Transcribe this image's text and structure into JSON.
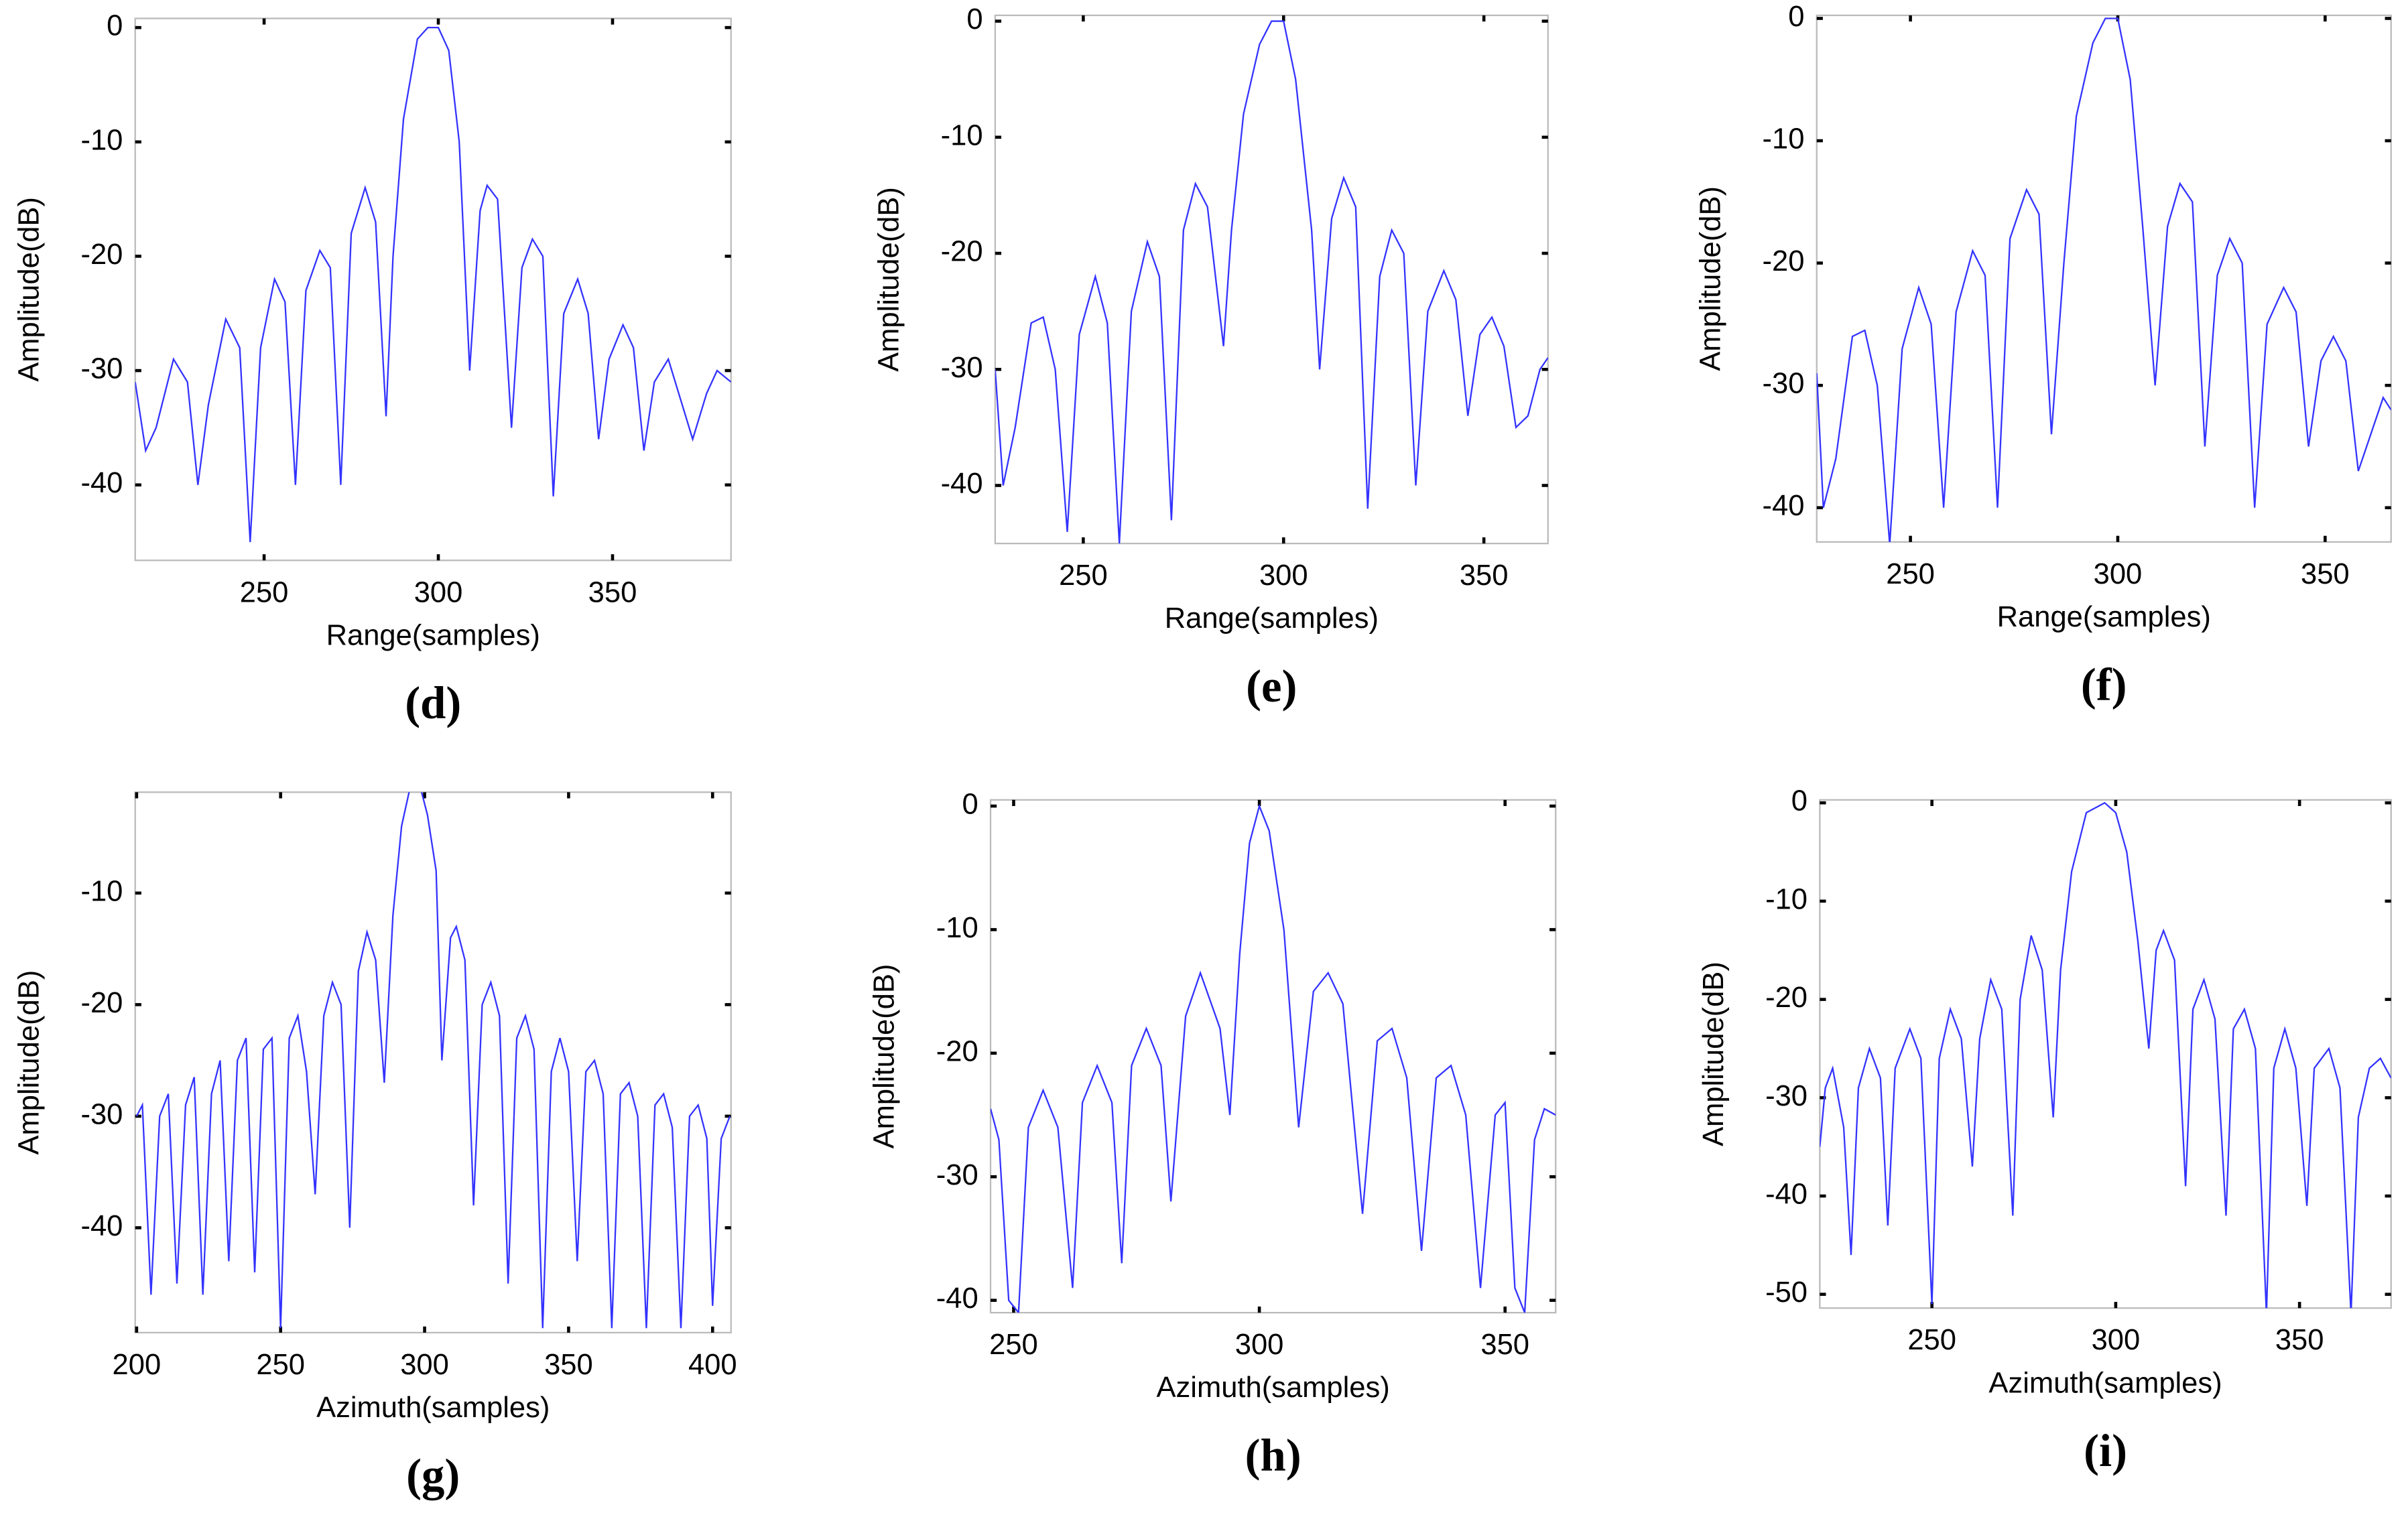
{
  "chart_data": [
    {
      "type": "line",
      "ylabel": "Amplitude(dB)",
      "xlabel": "Range(samples)",
      "caption": "(d)",
      "xlim": [
        213,
        384
      ],
      "ylim": [
        -46.6,
        0.8
      ],
      "xticks": [
        250,
        300,
        350
      ],
      "yticks": [
        -40,
        -30,
        -20,
        -10,
        0
      ],
      "x": [
        213,
        216,
        219,
        224,
        228,
        231,
        234,
        239,
        243,
        246,
        249,
        253,
        256,
        259,
        262,
        266,
        269,
        272,
        275,
        279,
        282,
        285,
        287,
        290,
        294,
        297,
        300,
        303,
        306,
        309,
        312,
        314,
        317,
        321,
        324,
        327,
        330,
        333,
        336,
        340,
        343,
        346,
        349,
        353,
        356,
        359,
        362,
        366,
        369,
        373,
        377,
        380,
        384
      ],
      "series": [
        {
          "color": "#3333ff",
          "values": [
            -31,
            -37,
            -35,
            -29,
            -31,
            -40,
            -33,
            -25.5,
            -28,
            -45,
            -28,
            -22,
            -24,
            -40,
            -23,
            -19.5,
            -21,
            -40,
            -18,
            -14,
            -17,
            -34,
            -20,
            -8,
            -1,
            0,
            0,
            -2,
            -10,
            -30,
            -16,
            -13.8,
            -15,
            -35,
            -21,
            -18.5,
            -20,
            -41,
            -25,
            -22,
            -25,
            -36,
            -29,
            -26,
            -28,
            -37,
            -31,
            -29,
            -32,
            -36,
            -32,
            -30,
            -31
          ]
        }
      ]
    },
    {
      "type": "line",
      "ylabel": "Amplitude(dB)",
      "xlabel": "Range(samples)",
      "caption": "(e)",
      "xlim": [
        228,
        366
      ],
      "ylim": [
        -45,
        0.5
      ],
      "xticks": [
        250,
        300,
        350
      ],
      "yticks": [
        -40,
        -30,
        -20,
        -10,
        0
      ],
      "x": [
        228,
        230,
        233,
        237,
        240,
        243,
        246,
        249,
        253,
        256,
        259,
        262,
        266,
        269,
        272,
        275,
        278,
        281,
        285,
        287,
        290,
        294,
        297,
        300,
        303,
        307,
        309,
        312,
        315,
        318,
        321,
        324,
        327,
        330,
        333,
        336,
        340,
        343,
        346,
        349,
        352,
        355,
        358,
        361,
        364,
        366
      ],
      "series": [
        {
          "color": "#3333ff",
          "values": [
            -30,
            -40,
            -35,
            -26,
            -25.5,
            -30,
            -44,
            -27,
            -22,
            -26,
            -45,
            -25,
            -19,
            -22,
            -43,
            -18,
            -14,
            -16,
            -28,
            -18,
            -8,
            -2,
            0,
            0,
            -5,
            -18,
            -30,
            -17,
            -13.5,
            -16,
            -42,
            -22,
            -18,
            -20,
            -40,
            -25,
            -21.5,
            -24,
            -34,
            -27,
            -25.5,
            -28,
            -35,
            -34,
            -30,
            -29
          ]
        }
      ]
    },
    {
      "type": "line",
      "ylabel": "Amplitude(dB)",
      "xlabel": "Range(samples)",
      "caption": "(f)",
      "xlim": [
        227.4,
        365.9
      ],
      "ylim": [
        -42.8,
        0.25
      ],
      "xticks": [
        250,
        300,
        350
      ],
      "yticks": [
        -40,
        -30,
        -20,
        -10,
        0
      ],
      "x": [
        227.4,
        229,
        232,
        236,
        239,
        242,
        245,
        248,
        252,
        255,
        258,
        261,
        265,
        268,
        271,
        274,
        278,
        281,
        284,
        287,
        290,
        294,
        297,
        300,
        303,
        306,
        309,
        312,
        315,
        318,
        321,
        324,
        327,
        330,
        333,
        336,
        340,
        343,
        346,
        349,
        352,
        355,
        358,
        361,
        364,
        365.9
      ],
      "series": [
        {
          "color": "#3333ff",
          "values": [
            -29,
            -40,
            -36,
            -26,
            -25.5,
            -30,
            -43,
            -27,
            -22,
            -25,
            -40,
            -24,
            -19,
            -21,
            -40,
            -18,
            -14,
            -16,
            -34,
            -20,
            -8,
            -2,
            0,
            0,
            -5,
            -17,
            -30,
            -17,
            -13.5,
            -15,
            -35,
            -21,
            -18,
            -20,
            -40,
            -25,
            -22,
            -24,
            -35,
            -28,
            -26,
            -28,
            -37,
            -34,
            -31,
            -32
          ]
        }
      ]
    },
    {
      "type": "line",
      "ylabel": "Amplitude(dB)",
      "xlabel": "Azimuth(samples)",
      "caption": "(g)",
      "xlim": [
        199.5,
        406.4
      ],
      "ylim": [
        -49.4,
        -0.96
      ],
      "xticks": [
        200,
        250,
        300,
        350,
        400
      ],
      "yticks": [
        -40,
        -30,
        -20,
        -10
      ],
      "x": [
        200,
        202,
        205,
        208,
        211,
        214,
        217,
        220,
        223,
        226,
        229,
        232,
        235,
        238,
        241,
        244,
        247,
        250,
        253,
        256,
        259,
        262,
        265,
        268,
        271,
        274,
        277,
        280,
        283,
        286,
        289,
        292,
        295,
        298,
        301,
        304,
        306,
        309,
        311,
        314,
        317,
        320,
        323,
        326,
        329,
        332,
        335,
        338,
        341,
        344,
        347,
        350,
        353,
        356,
        359,
        362,
        365,
        368,
        371,
        374,
        377,
        380,
        383,
        386,
        389,
        392,
        395,
        398,
        400,
        403,
        406
      ],
      "series": [
        {
          "color": "#3333ff",
          "values": [
            -30,
            -29,
            -46,
            -30,
            -28,
            -45,
            -29,
            -26.5,
            -46,
            -28,
            -25,
            -43,
            -25,
            -23,
            -44,
            -24,
            -23,
            -49,
            -23,
            -21,
            -26,
            -37,
            -21,
            -18,
            -20,
            -40,
            -17,
            -13.5,
            -16,
            -27,
            -12,
            -4,
            -0.5,
            0,
            -3,
            -8,
            -25,
            -14,
            -13,
            -16,
            -38,
            -20,
            -18,
            -21,
            -45,
            -23,
            -21,
            -24,
            -49,
            -26,
            -23,
            -26,
            -43,
            -26,
            -25,
            -28,
            -49,
            -28,
            -27,
            -30,
            -49,
            -29,
            -28,
            -31,
            -49,
            -30,
            -29,
            -32,
            -47,
            -32,
            -30
          ]
        }
      ]
    },
    {
      "type": "line",
      "ylabel": "Amplitude(dB)",
      "xlabel": "Azimuth(samples)",
      "caption": "(h)",
      "xlim": [
        245.3,
        360.3
      ],
      "ylim": [
        -41,
        0.5
      ],
      "xticks": [
        250,
        300,
        350
      ],
      "yticks": [
        -40,
        -30,
        -20,
        -10,
        0
      ],
      "x": [
        245.3,
        247,
        249,
        251,
        253,
        256,
        259,
        262,
        264,
        267,
        270,
        272,
        274,
        277,
        280,
        282,
        285,
        288,
        292,
        294,
        296,
        298,
        300,
        302,
        305,
        308,
        311,
        314,
        317,
        321,
        324,
        327,
        330,
        333,
        336,
        339,
        342,
        345,
        348,
        350,
        352,
        354,
        356,
        358,
        360.3
      ],
      "series": [
        {
          "color": "#3333ff",
          "values": [
            -24.5,
            -27,
            -40,
            -41,
            -26,
            -23,
            -26,
            -39,
            -24,
            -21,
            -24,
            -37,
            -21,
            -18,
            -21,
            -32,
            -17,
            -13.5,
            -18,
            -25,
            -12,
            -3,
            0,
            -2,
            -10,
            -26,
            -15,
            -13.5,
            -16,
            -33,
            -19,
            -18,
            -22,
            -36,
            -22,
            -21,
            -25,
            -39,
            -25,
            -24,
            -39,
            -41,
            -27,
            -24.5,
            -25
          ]
        }
      ]
    },
    {
      "type": "line",
      "ylabel": "Amplitude(dB)",
      "xlabel": "Azimuth(samples)",
      "caption": "(i)",
      "xlim": [
        219.5,
        374.9
      ],
      "ylim": [
        -51.4,
        0.3
      ],
      "xticks": [
        250,
        300,
        350
      ],
      "yticks": [
        -50,
        -40,
        -30,
        -20,
        -10,
        0
      ],
      "x": [
        219.5,
        221,
        223,
        226,
        228,
        230,
        233,
        236,
        238,
        240,
        244,
        247,
        250,
        252,
        255,
        258,
        261,
        263,
        266,
        269,
        272,
        274,
        277,
        280,
        283,
        285,
        288,
        292,
        297,
        300,
        303,
        306,
        309,
        311,
        313,
        316,
        319,
        321,
        324,
        327,
        330,
        332,
        335,
        338,
        341,
        343,
        346,
        349,
        352,
        354,
        358,
        361,
        364,
        366,
        369,
        372,
        374.9
      ],
      "series": [
        {
          "color": "#3333ff",
          "values": [
            -35,
            -29,
            -27,
            -33,
            -46,
            -29,
            -25,
            -28,
            -43,
            -27,
            -23,
            -26,
            -51,
            -26,
            -21,
            -24,
            -37,
            -24,
            -18,
            -21,
            -42,
            -20,
            -13.5,
            -17,
            -32,
            -17,
            -7,
            -1,
            0,
            -1,
            -5,
            -14,
            -25,
            -15,
            -13,
            -16,
            -39,
            -21,
            -18,
            -22,
            -42,
            -23,
            -21,
            -25,
            -52,
            -27,
            -23,
            -27,
            -41,
            -27,
            -25,
            -29,
            -52,
            -32,
            -27,
            -26,
            -28
          ]
        }
      ]
    }
  ]
}
